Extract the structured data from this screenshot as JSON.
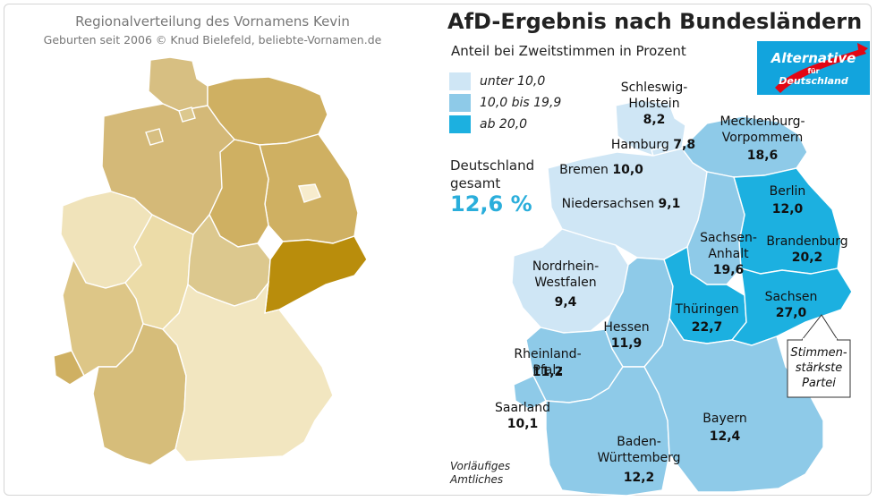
{
  "left_map": {
    "title": "Regionalverteilung des Vornamens Kevin",
    "subtitle": "Geburten  seit 2006  © Knud Bielefeld, beliebte-Vornamen.de",
    "colors": {
      "sh": "#d7bf82",
      "mv": "#cfb062",
      "hb": "#d7bf82",
      "ni": "#d4b978",
      "be": "#f7eccd",
      "st": "#cfb062",
      "bb": "#cfb062",
      "sn": "#b98d0c",
      "th": "#dcc88e",
      "nw": "#f0e3ba",
      "he": "#ecdca8",
      "rp": "#ddc687",
      "sl": "#cfb062",
      "bw": "#d6bd7a",
      "by": "#f2e6c0",
      "hh": "#dcc88e"
    }
  },
  "right_map": {
    "title": "AfD-Ergebnis nach Bundesländern",
    "subtitle": "Anteil bei Zweitstimmen in Prozent",
    "legend": [
      {
        "label": "unter 10,0",
        "color": "#cfe6f5"
      },
      {
        "label": "10,0 bis 19,9",
        "color": "#8ecae8"
      },
      {
        "label": "ab 20,0",
        "color": "#1cb0e0"
      }
    ],
    "total": {
      "label_line1": "Deutschland",
      "label_line2": "gesamt",
      "value": "12,6 %"
    },
    "states": [
      {
        "id": "sh",
        "name": "Schleswig-\nHolstein",
        "value": "8,2",
        "color": "#cfe6f5"
      },
      {
        "id": "hh",
        "name": "Hamburg",
        "value": "7,8",
        "color": "#cfe6f5"
      },
      {
        "id": "hb",
        "name": "Bremen",
        "value": "10,0",
        "color": "#8ecae8"
      },
      {
        "id": "mv",
        "name": "Mecklenburg-\nVorpommern",
        "value": "18,6",
        "color": "#8ecae8"
      },
      {
        "id": "ni",
        "name": "Niedersachsen",
        "value": "9,1",
        "color": "#cfe6f5"
      },
      {
        "id": "be",
        "name": "Berlin",
        "value": "12,0",
        "color": "#8ecae8"
      },
      {
        "id": "bb",
        "name": "Brandenburg",
        "value": "20,2",
        "color": "#1cb0e0"
      },
      {
        "id": "st",
        "name": "Sachsen-\nAnhalt",
        "value": "19,6",
        "color": "#8ecae8"
      },
      {
        "id": "nw",
        "name": "Nordrhein-\nWestfalen",
        "value": "9,4",
        "color": "#cfe6f5"
      },
      {
        "id": "he",
        "name": "Hessen",
        "value": "11,9",
        "color": "#8ecae8"
      },
      {
        "id": "th",
        "name": "Thüringen",
        "value": "22,7",
        "color": "#1cb0e0"
      },
      {
        "id": "sn",
        "name": "Sachsen",
        "value": "27,0",
        "color": "#1cb0e0"
      },
      {
        "id": "rp",
        "name": "Rheinland-\nPfalz",
        "value": "11,2",
        "color": "#8ecae8"
      },
      {
        "id": "sl",
        "name": "Saarland",
        "value": "10,1",
        "color": "#8ecae8"
      },
      {
        "id": "bw",
        "name": "Baden-\nWürttemberg",
        "value": "12,2",
        "color": "#8ecae8"
      },
      {
        "id": "by",
        "name": "Bayern",
        "value": "12,4",
        "color": "#8ecae8"
      }
    ],
    "callout": "Stimmen-\nstärkste\nPartei",
    "footnote_line1": "Vorläufiges",
    "footnote_line2": "Amtliches",
    "logo": {
      "word": "Alternative",
      "fuer": "für",
      "country": "Deutschland",
      "colors": {
        "blue": "#12a4dd",
        "red": "#e30613"
      }
    }
  }
}
